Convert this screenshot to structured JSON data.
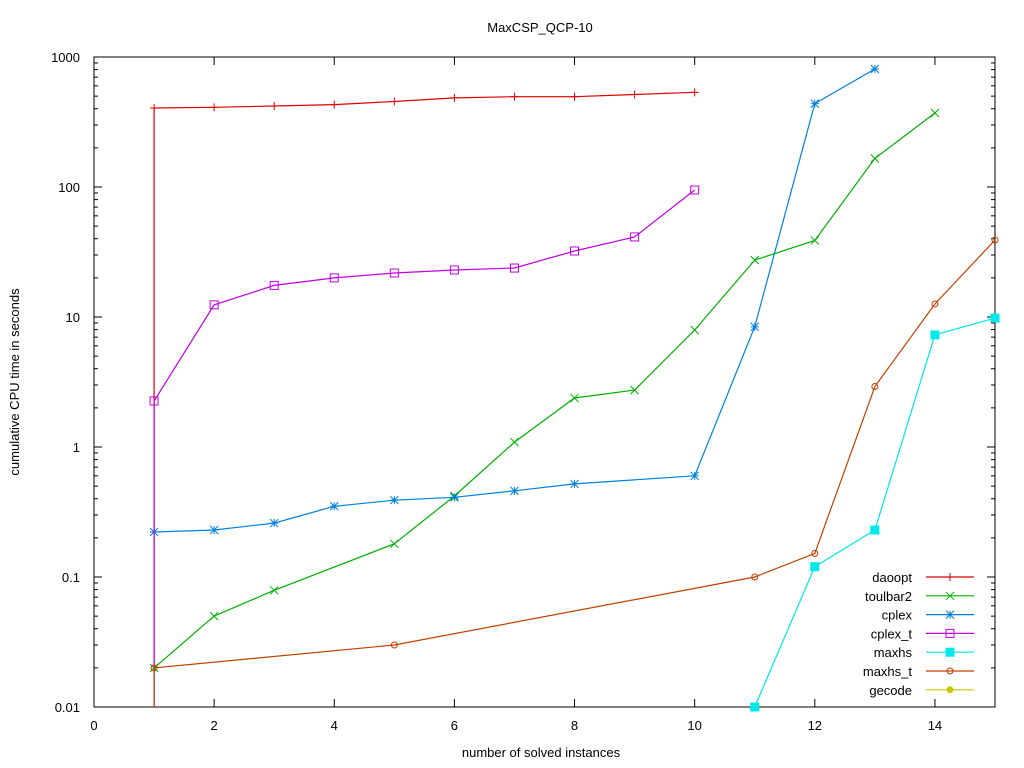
{
  "chart_data": {
    "type": "line",
    "title": "MaxCSP_QCP-10",
    "xlabel": "number of solved instances",
    "ylabel": "cumulative CPU time in seconds",
    "xlim": [
      0,
      15
    ],
    "ylim": [
      0.01,
      1000
    ],
    "yscale": "log",
    "xticks": [
      0,
      2,
      4,
      6,
      8,
      10,
      12,
      14
    ],
    "xtick_labels": [
      "0",
      "2",
      "4",
      "6",
      "8",
      "10",
      "12",
      "14"
    ],
    "yticks": [
      0.01,
      0.1,
      1,
      10,
      100,
      1000
    ],
    "ytick_labels": [
      "0.01",
      "0.1",
      "1",
      "10",
      "100",
      "1000"
    ],
    "grid": false,
    "legend_position": "bottom-right",
    "series": [
      {
        "name": "daoopt",
        "color": "#e00000",
        "marker": "plus",
        "points": [
          [
            1,
            0
          ],
          [
            1,
            405
          ],
          [
            2,
            410
          ],
          [
            3,
            420
          ],
          [
            4,
            430
          ],
          [
            5,
            455
          ],
          [
            6,
            485
          ],
          [
            7,
            495
          ],
          [
            8,
            495
          ],
          [
            9,
            515
          ],
          [
            10,
            535
          ]
        ]
      },
      {
        "name": "toulbar2",
        "color": "#00b000",
        "marker": "cross",
        "points": [
          [
            1,
            0.02
          ],
          [
            2,
            0.05
          ],
          [
            3,
            0.079
          ],
          [
            5,
            0.18
          ],
          [
            6,
            0.42
          ],
          [
            7,
            1.09
          ],
          [
            8,
            2.38
          ],
          [
            9,
            2.74
          ],
          [
            10,
            7.94
          ],
          [
            11,
            27.4
          ],
          [
            12,
            38.8
          ],
          [
            13,
            166
          ],
          [
            14,
            371
          ]
        ]
      },
      {
        "name": "cplex",
        "color": "#0080e0",
        "marker": "star",
        "points": [
          [
            1,
            0.222
          ],
          [
            2,
            0.23
          ],
          [
            3,
            0.26
          ],
          [
            4,
            0.35
          ],
          [
            5,
            0.39
          ],
          [
            6,
            0.41
          ],
          [
            7,
            0.46
          ],
          [
            8,
            0.52
          ],
          [
            10,
            0.6
          ],
          [
            11,
            8.4
          ],
          [
            12,
            438
          ],
          [
            13,
            809
          ]
        ]
      },
      {
        "name": "cplex_t",
        "color": "#c000e0",
        "marker": "open-square",
        "points": [
          [
            1,
            0
          ],
          [
            1,
            2.26
          ],
          [
            2,
            12.4
          ],
          [
            3,
            17.5
          ],
          [
            4,
            20
          ],
          [
            5,
            21.8
          ],
          [
            6,
            23
          ],
          [
            7,
            23.8
          ],
          [
            8,
            32.2
          ],
          [
            9,
            41.3
          ],
          [
            10,
            94.8
          ]
        ]
      },
      {
        "name": "maxhs",
        "color": "#00e8e8",
        "marker": "filled-square",
        "points": [
          [
            11,
            0.01
          ],
          [
            12,
            0.12
          ],
          [
            13,
            0.23
          ],
          [
            14,
            7.28
          ],
          [
            15,
            9.8
          ]
        ]
      },
      {
        "name": "maxhs_t",
        "color": "#c04000",
        "marker": "open-circle",
        "points": [
          [
            1,
            0
          ],
          [
            1,
            0.02
          ],
          [
            5,
            0.03
          ],
          [
            11,
            0.1
          ],
          [
            12,
            0.152
          ],
          [
            13,
            2.92
          ],
          [
            14,
            12.6
          ],
          [
            15,
            39.1
          ]
        ]
      },
      {
        "name": "gecode",
        "color": "#c8c800",
        "marker": "filled-circle",
        "points": []
      }
    ]
  }
}
